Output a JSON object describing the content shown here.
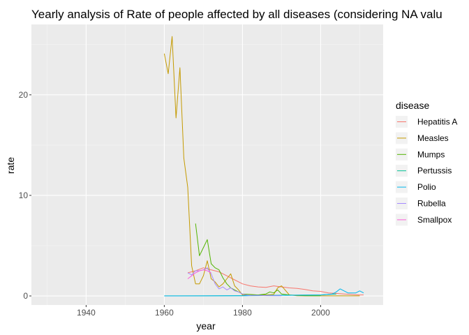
{
  "chart_data": {
    "type": "line",
    "title": "Yearly analysis of Rate of people affected by all diseases (considering NA valu",
    "xlabel": "year",
    "ylabel": "rate",
    "xlim": [
      1926,
      2016
    ],
    "ylim": [
      -0.9,
      27
    ],
    "x_ticks": [
      1940,
      1960,
      1980,
      2000
    ],
    "y_ticks": [
      0,
      10,
      20
    ],
    "grid": true,
    "legend": {
      "title": "disease",
      "position": "right"
    },
    "series": [
      {
        "name": "Hepatitis A",
        "color": "#F8766D",
        "x": [
          1966,
          1968,
          1970,
          1972,
          1974,
          1976,
          1978,
          1980,
          1982,
          1984,
          1986,
          1988,
          1990,
          1992,
          1994,
          1996,
          1998,
          2000,
          2002,
          2004,
          2006,
          2008,
          2010,
          2011
        ],
        "y": [
          2.3,
          2.5,
          2.8,
          2.6,
          2.4,
          2.0,
          1.6,
          1.2,
          1.0,
          0.9,
          0.85,
          1.0,
          0.9,
          0.8,
          0.75,
          0.65,
          0.5,
          0.45,
          0.3,
          0.25,
          0.2,
          0.15,
          0.1,
          0.1
        ]
      },
      {
        "name": "Measles",
        "color": "#C49A00",
        "x": [
          1960,
          1961,
          1962,
          1963,
          1964,
          1965,
          1966,
          1967,
          1968,
          1969,
          1970,
          1971,
          1972,
          1973,
          1974,
          1975,
          1976,
          1977,
          1978,
          1979,
          1980,
          1982,
          1984,
          1986,
          1988,
          1989,
          1990,
          1992,
          1994,
          1996,
          1998,
          2000,
          2005,
          2010
        ],
        "y": [
          24.1,
          22.1,
          25.8,
          17.7,
          22.7,
          13.7,
          10.8,
          3.0,
          1.2,
          1.2,
          2.0,
          3.5,
          1.7,
          1.4,
          0.9,
          1.2,
          1.7,
          2.2,
          1.0,
          0.6,
          0.1,
          0.05,
          0.1,
          0.1,
          0.15,
          0.8,
          1.0,
          0.1,
          0.02,
          0.01,
          0.01,
          0.01,
          0.01,
          0.01
        ]
      },
      {
        "name": "Mumps",
        "color": "#53B400",
        "x": [
          1968,
          1969,
          1970,
          1971,
          1972,
          1973,
          1974,
          1975,
          1976,
          1977,
          1978,
          1979,
          1980,
          1982,
          1984,
          1986,
          1987,
          1988,
          1989,
          1990,
          1992,
          1994,
          1996,
          1998,
          2000
        ],
        "y": [
          7.2,
          4.0,
          4.8,
          5.6,
          3.2,
          2.8,
          2.6,
          1.8,
          1.2,
          0.8,
          0.6,
          0.4,
          0.2,
          0.15,
          0.1,
          0.2,
          0.4,
          0.3,
          0.6,
          0.2,
          0.1,
          0.05,
          0.03,
          0.02,
          0.02
        ]
      },
      {
        "name": "Pertussis",
        "color": "#00C094",
        "x": [
          1960,
          1965,
          1970,
          1975,
          1980,
          1985,
          1990,
          1995,
          2000,
          2002,
          2004
        ],
        "y": [
          0.01,
          0.01,
          0.01,
          0.02,
          0.03,
          0.05,
          0.07,
          0.09,
          0.1,
          0.15,
          0.2
        ]
      },
      {
        "name": "Polio",
        "color": "#00B6EB",
        "x": [
          1960,
          1970,
          1980,
          1990,
          2000,
          2003,
          2004,
          2005,
          2006,
          2007,
          2008,
          2009,
          2010,
          2011
        ],
        "y": [
          0.0,
          0.01,
          0.02,
          0.05,
          0.1,
          0.2,
          0.4,
          0.7,
          0.5,
          0.3,
          0.3,
          0.3,
          0.5,
          0.3
        ]
      },
      {
        "name": "Rubella",
        "color": "#A58AFF",
        "x": [
          1966,
          1967,
          1968,
          1969,
          1970,
          1971,
          1972,
          1973,
          1974,
          1975,
          1976,
          1977,
          1978,
          1979,
          1980,
          1981,
          1982,
          1984,
          1986,
          1988,
          1990
        ],
        "y": [
          2.3,
          2.1,
          2.5,
          2.5,
          2.6,
          2.8,
          2.2,
          1.2,
          0.7,
          0.9,
          0.6,
          0.8,
          0.5,
          0.4,
          0.2,
          0.1,
          0.05,
          0.05,
          0.03,
          0.02,
          0.02
        ]
      },
      {
        "name": "Smallpox",
        "color": "#FB61D7",
        "x": [
          1966,
          1967,
          1968,
          1969,
          1970,
          1971,
          1972
        ],
        "y": [
          1.7,
          2.0,
          2.3,
          2.5,
          2.6,
          2.5,
          2.3
        ]
      }
    ]
  }
}
